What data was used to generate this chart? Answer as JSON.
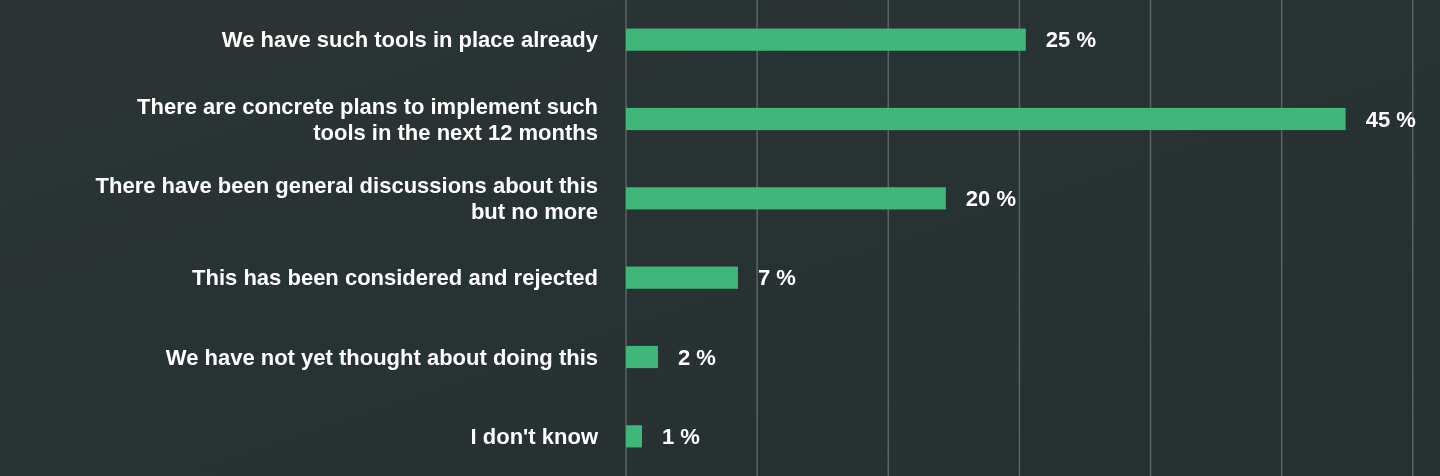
{
  "chart_data": {
    "type": "bar",
    "orientation": "horizontal",
    "categories": [
      "We have such tools in place already",
      "There are concrete plans to implement such tools in the next 12 months",
      "There have been general discussions about this but no more",
      "This has been considered and rejected",
      "We have not yet thought about doing this",
      "I don't know"
    ],
    "values": [
      25,
      45,
      20,
      7,
      2,
      1
    ],
    "value_labels": [
      "25 %",
      "45 %",
      "20 %",
      "7 %",
      "2 %",
      "1 %"
    ],
    "color": "#3fb67a",
    "xlim": [
      0,
      50.9
    ],
    "xticks": [
      {
        "value": 0,
        "label": null
      },
      {
        "value": 8.2,
        "label": null
      },
      {
        "value": 16.4,
        "label": null
      },
      {
        "value": 24.6,
        "label": null
      },
      {
        "value": 32.8,
        "label": null
      },
      {
        "value": 41,
        "label": null
      },
      {
        "value": 49.2,
        "label": null
      }
    ],
    "grid": "x"
  }
}
